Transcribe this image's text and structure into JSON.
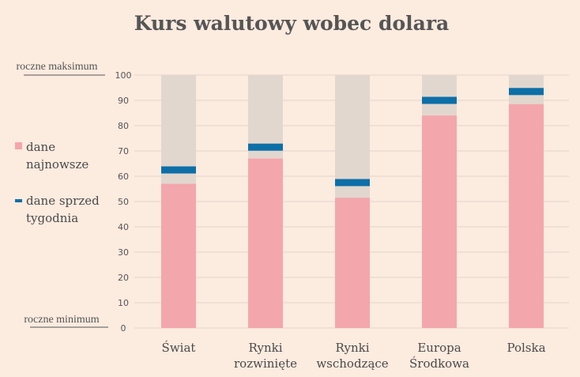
{
  "chart_data": {
    "type": "bar",
    "title": "Kurs walutowy wobec dolara",
    "ylim": [
      0,
      100
    ],
    "yticks": [
      0,
      10,
      20,
      30,
      40,
      50,
      60,
      70,
      80,
      90,
      100
    ],
    "y_top_label": "roczne maksimum",
    "y_bottom_label": "roczne minimum",
    "grid": true,
    "legend_placement": "left",
    "categories": [
      [
        "Świat"
      ],
      [
        "Rynki",
        "rozwinięte"
      ],
      [
        "Rynki",
        "wschodzące"
      ],
      [
        "Europa",
        "Środkowa"
      ],
      [
        "Polska"
      ]
    ],
    "range_max": [
      100,
      100,
      100,
      100,
      100
    ],
    "series": [
      {
        "name": "dane najnowsze",
        "legend_lines": [
          "dane",
          "najnowsze"
        ],
        "values": [
          57,
          67,
          51.5,
          84,
          88.5
        ],
        "color": "#f4a6ad"
      },
      {
        "name": "dane sprzed tygodnia",
        "legend_lines": [
          "dane sprzed",
          "tygodnia"
        ],
        "values": [
          62.5,
          71.5,
          57.5,
          90,
          93.5
        ],
        "color": "#0d6fa8"
      }
    ],
    "colors": {
      "range_bg": "#e2d7ce",
      "grid": "#e3d3c8",
      "text": "#4a4a4a"
    }
  }
}
